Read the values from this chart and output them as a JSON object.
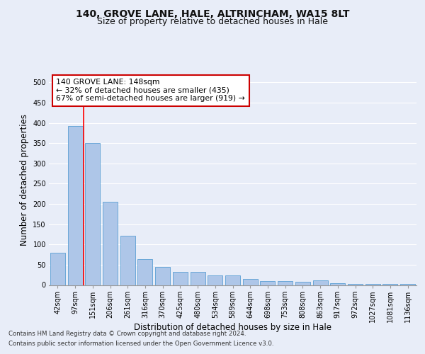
{
  "title": "140, GROVE LANE, HALE, ALTRINCHAM, WA15 8LT",
  "subtitle": "Size of property relative to detached houses in Hale",
  "xlabel": "Distribution of detached houses by size in Hale",
  "ylabel": "Number of detached properties",
  "footer_line1": "Contains HM Land Registry data © Crown copyright and database right 2024.",
  "footer_line2": "Contains public sector information licensed under the Open Government Licence v3.0.",
  "categories": [
    "42sqm",
    "97sqm",
    "151sqm",
    "206sqm",
    "261sqm",
    "316sqm",
    "370sqm",
    "425sqm",
    "480sqm",
    "534sqm",
    "589sqm",
    "644sqm",
    "698sqm",
    "753sqm",
    "808sqm",
    "863sqm",
    "917sqm",
    "972sqm",
    "1027sqm",
    "1081sqm",
    "1136sqm"
  ],
  "values": [
    80,
    393,
    350,
    205,
    122,
    64,
    44,
    32,
    32,
    24,
    24,
    14,
    9,
    9,
    7,
    11,
    4,
    3,
    2,
    2,
    3
  ],
  "bar_color": "#aec6e8",
  "bar_edge_color": "#5a9fd4",
  "annotation_text": "140 GROVE LANE: 148sqm\n← 32% of detached houses are smaller (435)\n67% of semi-detached houses are larger (919) →",
  "annotation_box_color": "#ffffff",
  "annotation_box_edge": "#cc0000",
  "ylim": [
    0,
    520
  ],
  "yticks": [
    0,
    50,
    100,
    150,
    200,
    250,
    300,
    350,
    400,
    450,
    500
  ],
  "background_color": "#e8edf8",
  "plot_bg_color": "#e8edf8",
  "grid_color": "#ffffff",
  "title_fontsize": 10,
  "subtitle_fontsize": 9,
  "axis_label_fontsize": 8.5,
  "tick_fontsize": 7
}
